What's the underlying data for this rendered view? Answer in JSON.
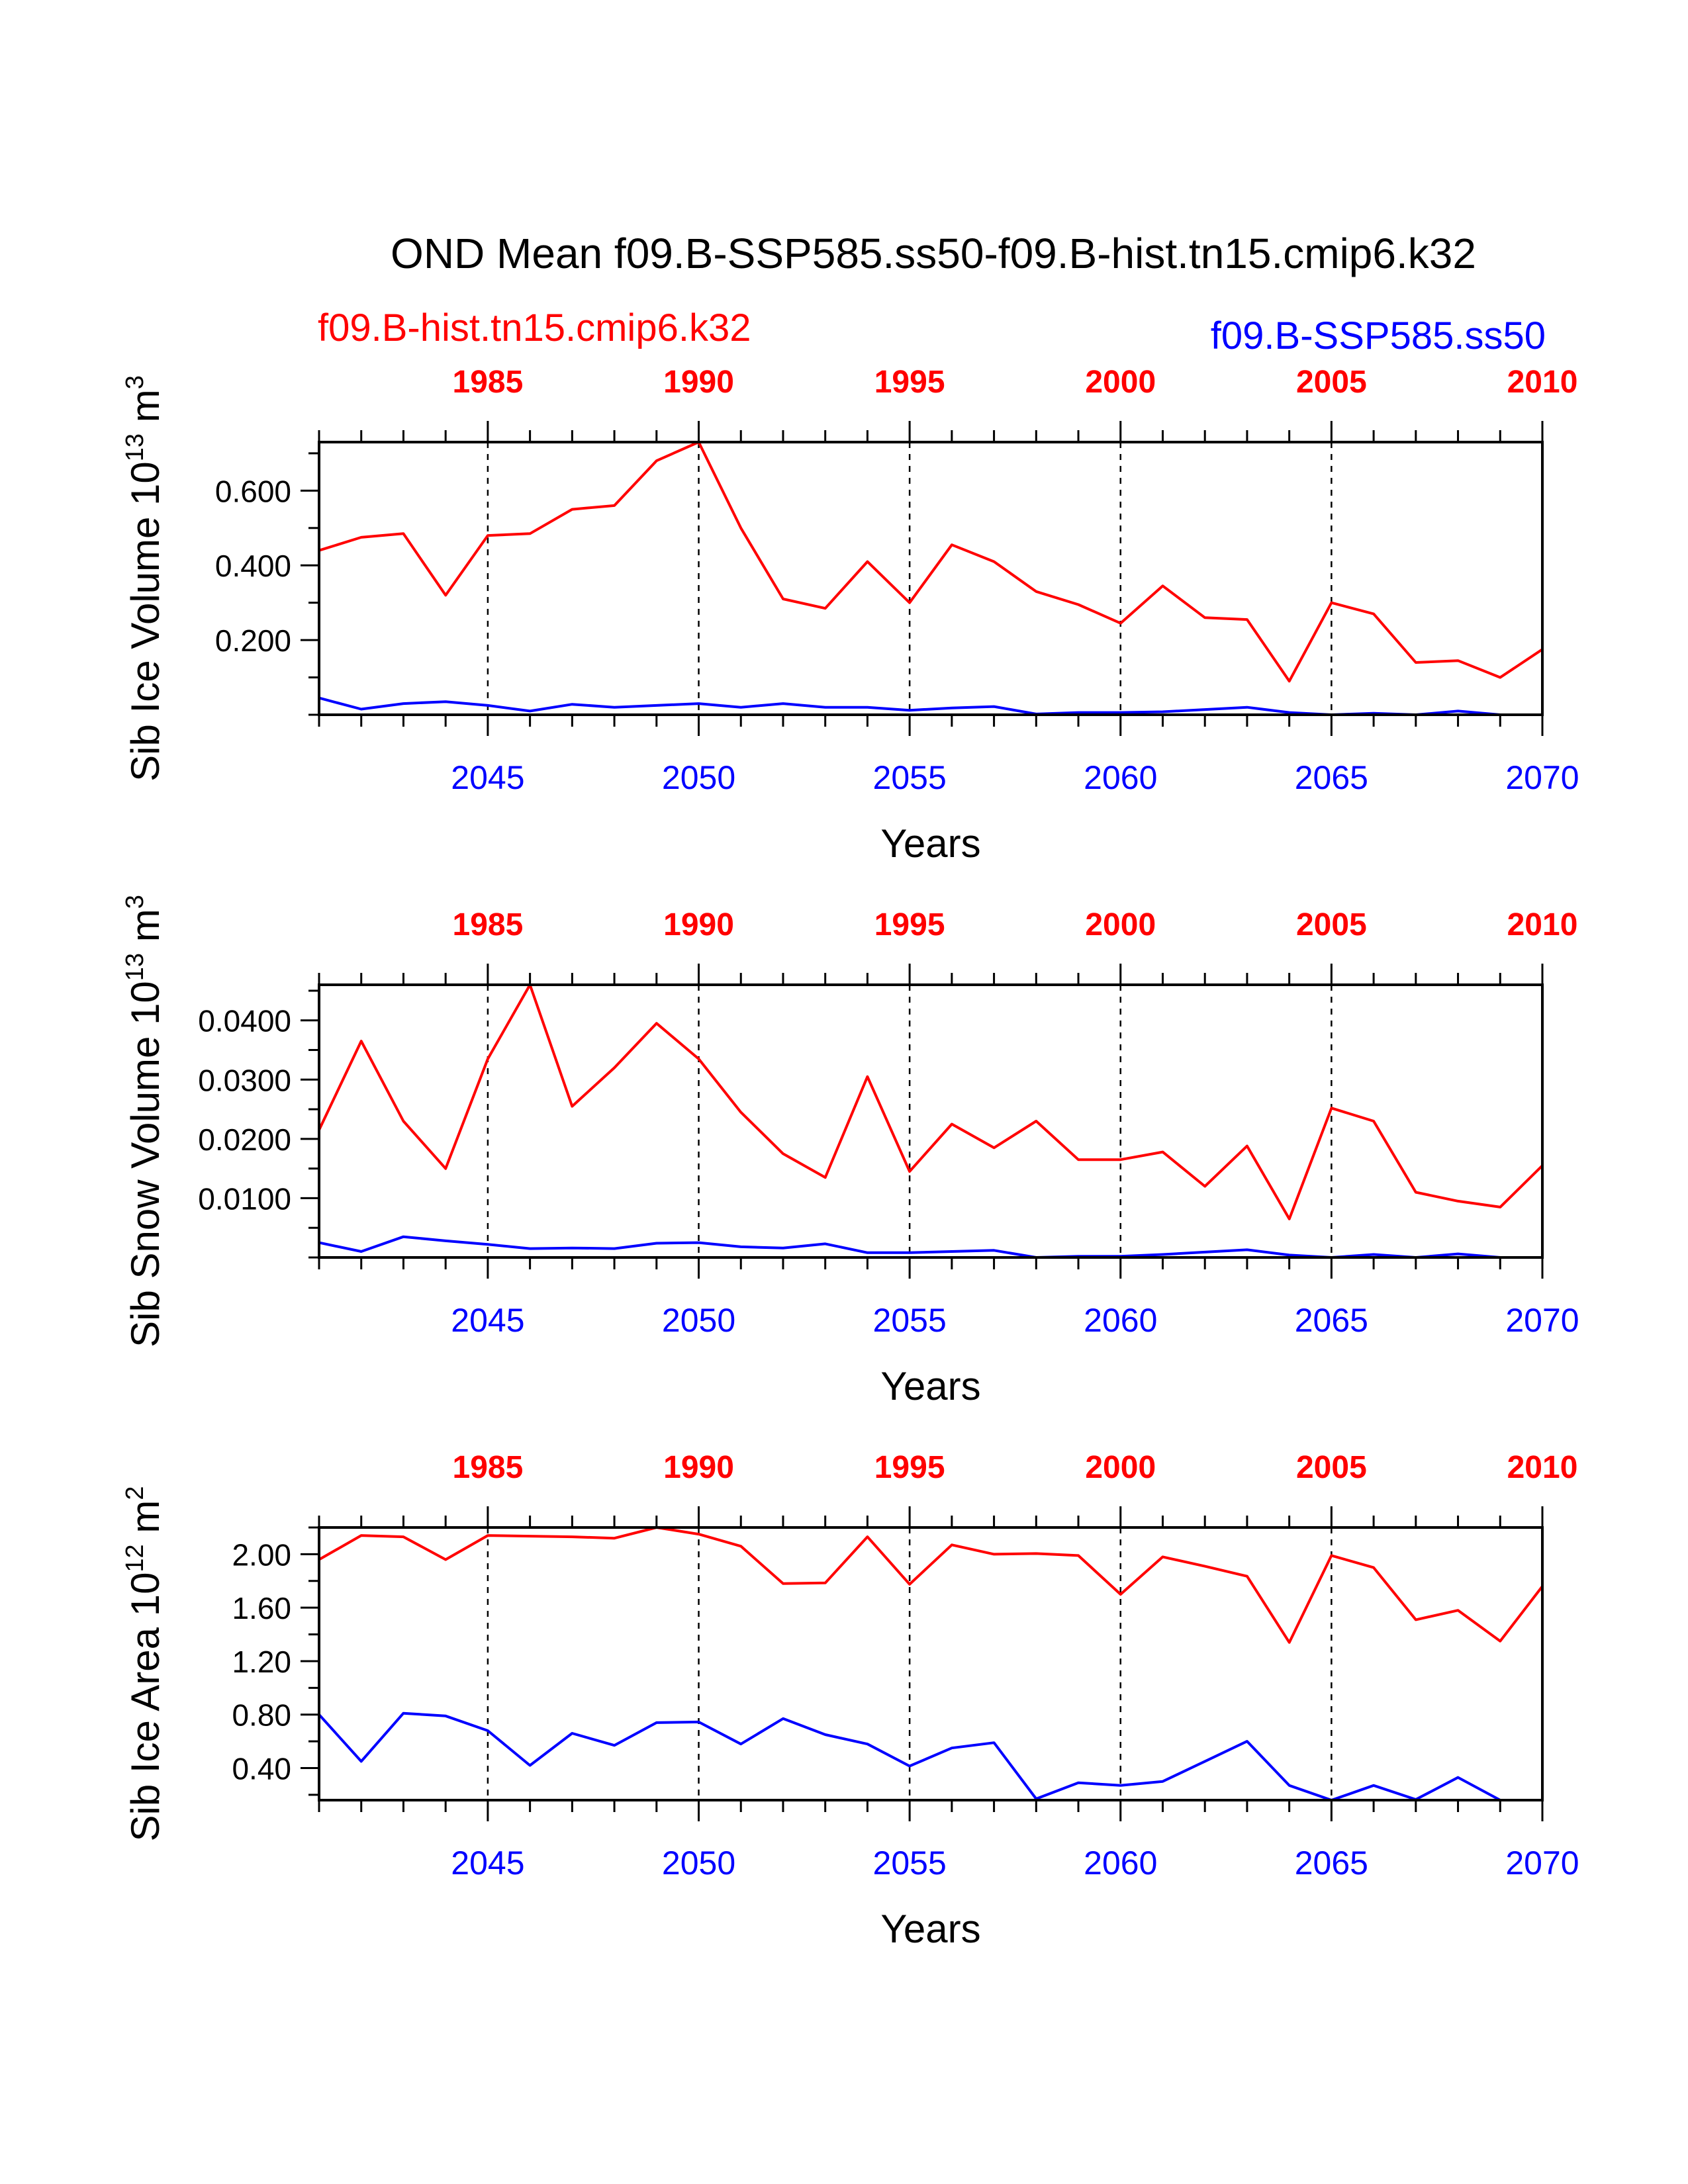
{
  "title": "OND Mean f09.B-SSP585.ss50-f09.B-hist.tn15.cmip6.k32",
  "colors": {
    "hist": "#ff0000",
    "ssp": "#0000ff",
    "axis": "#000000"
  },
  "legend": {
    "hist": "f09.B-hist.tn15.cmip6.k32",
    "ssp": "f09.B-SSP585.ss50"
  },
  "chart_data": [
    {
      "type": "line",
      "ylabel_main": "Sib Ice Volume 10",
      "ylabel_exp": "13",
      "ylabel_unit": " m",
      "ylabel_unit_exp": "3",
      "xlabel": "Years",
      "xlim": [
        2041,
        2070
      ],
      "ylim": [
        0,
        0.73
      ],
      "yticks": [
        0.2,
        0.4,
        0.6
      ],
      "ytick_labels": [
        "0.200",
        "0.400",
        "0.600"
      ],
      "x": [
        2041,
        2042,
        2043,
        2044,
        2045,
        2046,
        2047,
        2048,
        2049,
        2050,
        2051,
        2052,
        2053,
        2054,
        2055,
        2056,
        2057,
        2058,
        2059,
        2060,
        2061,
        2062,
        2063,
        2064,
        2065,
        2066,
        2067,
        2068,
        2069,
        2070
      ],
      "top_axis": {
        "ticks": [
          1985,
          1990,
          1995,
          2000,
          2005,
          2010
        ],
        "offset": 60
      },
      "bottom_axis": {
        "ticks": [
          2045,
          2050,
          2055,
          2060,
          2065,
          2070
        ]
      },
      "vlines": [
        2045,
        2050,
        2055,
        2060,
        2065
      ],
      "series": [
        {
          "name": "f09.B-hist.tn15.cmip6.k32",
          "key": "hist",
          "values": [
            0.44,
            0.475,
            0.485,
            0.32,
            0.48,
            0.485,
            0.55,
            0.56,
            0.68,
            0.73,
            0.5,
            0.31,
            0.285,
            0.41,
            0.3,
            0.455,
            0.41,
            0.33,
            0.295,
            0.245,
            0.345,
            0.26,
            0.255,
            0.09,
            0.3,
            0.27,
            0.14,
            0.145,
            0.1,
            0.175
          ]
        },
        {
          "name": "f09.B-SSP585.ss50",
          "key": "ssp",
          "values": [
            0.045,
            0.015,
            0.03,
            0.035,
            0.025,
            0.01,
            0.028,
            0.02,
            0.025,
            0.03,
            0.02,
            0.03,
            0.02,
            0.02,
            0.012,
            0.018,
            0.022,
            0.002,
            0.006,
            0.006,
            0.008,
            0.014,
            0.02,
            0.006,
            0.0,
            0.004,
            0.0,
            0.01,
            0.0,
            0.0
          ]
        }
      ]
    },
    {
      "type": "line",
      "ylabel_main": "Sib Snow Volume 10",
      "ylabel_exp": "13",
      "ylabel_unit": " m",
      "ylabel_unit_exp": "3",
      "xlabel": "Years",
      "xlim": [
        2041,
        2070
      ],
      "ylim": [
        0,
        0.046
      ],
      "yticks": [
        0.01,
        0.02,
        0.03,
        0.04
      ],
      "ytick_labels": [
        "0.0100",
        "0.0200",
        "0.0300",
        "0.0400"
      ],
      "x": [
        2041,
        2042,
        2043,
        2044,
        2045,
        2046,
        2047,
        2048,
        2049,
        2050,
        2051,
        2052,
        2053,
        2054,
        2055,
        2056,
        2057,
        2058,
        2059,
        2060,
        2061,
        2062,
        2063,
        2064,
        2065,
        2066,
        2067,
        2068,
        2069,
        2070
      ],
      "top_axis": {
        "ticks": [
          1985,
          1990,
          1995,
          2000,
          2005,
          2010
        ],
        "offset": 60
      },
      "bottom_axis": {
        "ticks": [
          2045,
          2050,
          2055,
          2060,
          2065,
          2070
        ]
      },
      "vlines": [
        2045,
        2050,
        2055,
        2060,
        2065
      ],
      "series": [
        {
          "name": "f09.B-hist.tn15.cmip6.k32",
          "key": "hist",
          "values": [
            0.0215,
            0.0365,
            0.023,
            0.015,
            0.0335,
            0.046,
            0.0255,
            0.032,
            0.0395,
            0.0335,
            0.0245,
            0.0175,
            0.0135,
            0.0305,
            0.0145,
            0.0225,
            0.0185,
            0.023,
            0.0165,
            0.0165,
            0.0178,
            0.012,
            0.0188,
            0.0065,
            0.0252,
            0.023,
            0.011,
            0.0095,
            0.0085,
            0.0155
          ]
        },
        {
          "name": "f09.B-SSP585.ss50",
          "key": "ssp",
          "values": [
            0.0025,
            0.001,
            0.0035,
            0.0028,
            0.0022,
            0.0015,
            0.0016,
            0.0015,
            0.0024,
            0.0025,
            0.0018,
            0.0016,
            0.0023,
            0.0008,
            0.0008,
            0.001,
            0.0012,
            0.0,
            0.0002,
            0.0002,
            0.0005,
            0.0009,
            0.0013,
            0.0004,
            0.0,
            0.0005,
            0.0,
            0.0006,
            0.0,
            0.0
          ]
        }
      ]
    },
    {
      "type": "line",
      "ylabel_main": "Sib Ice Area 10",
      "ylabel_exp": "12",
      "ylabel_unit": " m",
      "ylabel_unit_exp": "2",
      "xlabel": "Years",
      "xlim": [
        2041,
        2070
      ],
      "ylim": [
        0.16,
        2.2
      ],
      "yticks": [
        0.4,
        0.8,
        1.2,
        1.6,
        2.0
      ],
      "ytick_labels": [
        "0.40",
        "0.80",
        "1.20",
        "1.60",
        "2.00"
      ],
      "x": [
        2041,
        2042,
        2043,
        2044,
        2045,
        2046,
        2047,
        2048,
        2049,
        2050,
        2051,
        2052,
        2053,
        2054,
        2055,
        2056,
        2057,
        2058,
        2059,
        2060,
        2061,
        2062,
        2063,
        2064,
        2065,
        2066,
        2067,
        2068,
        2069,
        2070
      ],
      "top_axis": {
        "ticks": [
          1985,
          1990,
          1995,
          2000,
          2005,
          2010
        ],
        "offset": 60
      },
      "bottom_axis": {
        "ticks": [
          2045,
          2050,
          2055,
          2060,
          2065,
          2070
        ]
      },
      "vlines": [
        2045,
        2050,
        2055,
        2060,
        2065
      ],
      "series": [
        {
          "name": "f09.B-hist.tn15.cmip6.k32",
          "key": "hist",
          "values": [
            1.96,
            2.14,
            2.13,
            1.96,
            2.14,
            2.135,
            2.13,
            2.12,
            2.2,
            2.15,
            2.06,
            1.78,
            1.785,
            2.13,
            1.775,
            2.07,
            2.0,
            2.005,
            1.99,
            1.7,
            1.98,
            1.91,
            1.835,
            1.34,
            1.99,
            1.9,
            1.51,
            1.58,
            1.35,
            1.76
          ]
        },
        {
          "name": "f09.B-SSP585.ss50",
          "key": "ssp",
          "values": [
            0.8,
            0.45,
            0.81,
            0.79,
            0.68,
            0.42,
            0.66,
            0.57,
            0.74,
            0.745,
            0.58,
            0.77,
            0.65,
            0.58,
            0.415,
            0.55,
            0.59,
            0.17,
            0.29,
            0.27,
            0.3,
            0.45,
            0.6,
            0.27,
            0.16,
            0.27,
            0.165,
            0.33,
            0.16,
            0.16
          ]
        }
      ]
    }
  ]
}
